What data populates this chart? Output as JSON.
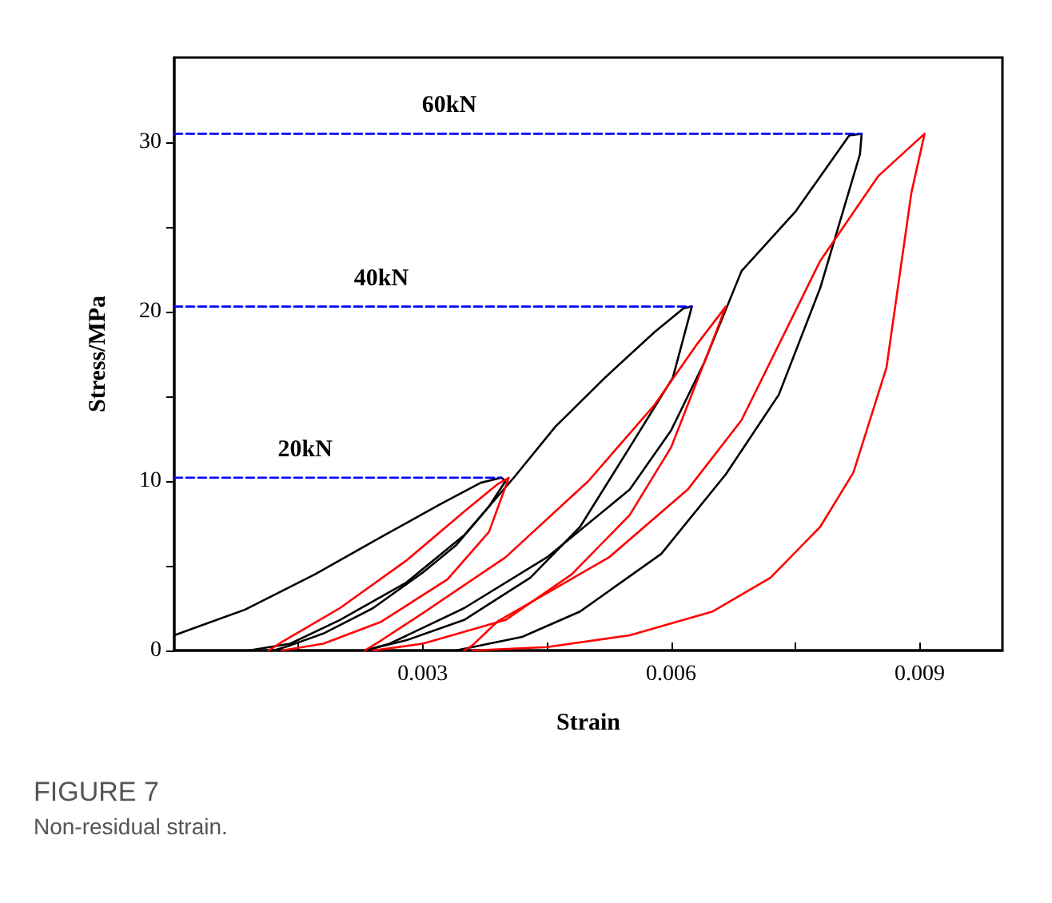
{
  "chart_data": {
    "type": "line",
    "title": "FIGURE 7",
    "subtitle": "Non-residual strain.",
    "xlabel": "Strain",
    "ylabel": "Stress/MPa",
    "xlim": [
      0,
      0.01
    ],
    "xticks": [
      {
        "value": 0.0015,
        "label": null
      },
      0.003,
      {
        "value": 0.0045,
        "label": null
      },
      0.006,
      {
        "value": 0.0075,
        "label": null
      },
      0.009
    ],
    "ylim": [
      0,
      35
    ],
    "yticks": [
      0,
      {
        "value": 5,
        "label": null
      },
      10,
      {
        "value": 15,
        "label": null
      },
      20,
      {
        "value": 25,
        "label": null
      },
      30
    ],
    "grid": false,
    "legend": false,
    "marker": "none",
    "series": [
      {
        "color": "#000000",
        "line_style": "solid",
        "x": [
          0,
          0.00085,
          0.0017,
          0.0025,
          0.0032,
          0.0037,
          0.00395,
          0.004,
          0.0038,
          0.0034,
          0.003,
          0.0024,
          0.0018,
          0.0014,
          0.0012
        ],
        "values": [
          0.9,
          2.4,
          4.5,
          6.7,
          8.6,
          9.9,
          10.2,
          10,
          8.5,
          6.2,
          4.6,
          2.5,
          1,
          0.3,
          0
        ]
      },
      {
        "color": "#000000",
        "line_style": "solid",
        "x": [
          0.0009,
          0.0014,
          0.002,
          0.0028,
          0.0035,
          0.0041,
          0.0046,
          0.0052,
          0.0058,
          0.00615,
          0.00625,
          0.00602,
          0.0055,
          0.0049,
          0.0043,
          0.0035,
          0.0028,
          0.0023
        ],
        "values": [
          0,
          0.4,
          1.8,
          4,
          6.8,
          10.2,
          13.2,
          16.1,
          18.8,
          20.2,
          20.3,
          16.1,
          12,
          7.3,
          4.3,
          1.8,
          0.6,
          0
        ]
      },
      {
        "color": "#000000",
        "line_style": "solid",
        "x": [
          0.0023,
          0.0026,
          0.0035,
          0.0045,
          0.0055,
          0.006,
          0.0064,
          0.00685,
          0.0075,
          0.00815,
          0.0083,
          0.00828,
          0.0078,
          0.0073,
          0.00666,
          0.00588,
          0.0049,
          0.0042,
          0.0034
        ],
        "values": [
          0,
          0.4,
          2.5,
          5.5,
          9.5,
          13,
          17,
          22.4,
          25.9,
          30.4,
          30.5,
          29.3,
          21.4,
          15.1,
          10.4,
          5.7,
          2.3,
          0.8,
          0
        ]
      },
      {
        "color": "#ff0000",
        "line_style": "solid",
        "x": [
          0.00114,
          0.0013,
          0.002,
          0.0028,
          0.0035,
          0.0039,
          0.00404,
          0.0038,
          0.0033,
          0.0025,
          0.0018,
          0.0013
        ],
        "values": [
          0,
          0.5,
          2.5,
          5.3,
          8.2,
          9.8,
          10.2,
          7,
          4.2,
          1.7,
          0.4,
          0
        ]
      },
      {
        "color": "#ff0000",
        "line_style": "solid",
        "x": [
          0.0023,
          0.0025,
          0.003,
          0.004,
          0.005,
          0.0058,
          0.0063,
          0.00666,
          0.0064,
          0.006,
          0.0055,
          0.0048,
          0.004,
          0.003,
          0.0024
        ],
        "values": [
          0,
          0.6,
          2.2,
          5.5,
          10,
          14.5,
          18,
          20.3,
          17,
          12,
          8,
          4.5,
          1.8,
          0.4,
          0
        ]
      },
      {
        "color": "#ff0000",
        "line_style": "solid",
        "x": [
          0.0035,
          0.0036,
          0.0039,
          0.00525,
          0.0062,
          0.00685,
          0.0078,
          0.0085,
          0.00906,
          0.0089,
          0.0086,
          0.0082,
          0.0078,
          0.0072,
          0.0065,
          0.0055,
          0.0045,
          0.0036
        ],
        "values": [
          0,
          0.3,
          1.7,
          5.5,
          9.5,
          13.6,
          23,
          28,
          30.5,
          27,
          16.7,
          10.5,
          7.3,
          4.3,
          2.3,
          0.9,
          0.2,
          0
        ]
      },
      {
        "name": "20kN",
        "color": "#0000ff",
        "line_style": "dashed",
        "x": [
          0,
          0.00395
        ],
        "values": [
          10.2,
          10.2
        ]
      },
      {
        "name": "40kN",
        "color": "#0000ff",
        "line_style": "dashed",
        "x": [
          0,
          0.00625
        ],
        "values": [
          20.3,
          20.3
        ]
      },
      {
        "name": "60kN",
        "color": "#0000ff",
        "line_style": "dashed",
        "x": [
          0,
          0.0083
        ],
        "values": [
          30.5,
          30.5
        ]
      }
    ]
  }
}
